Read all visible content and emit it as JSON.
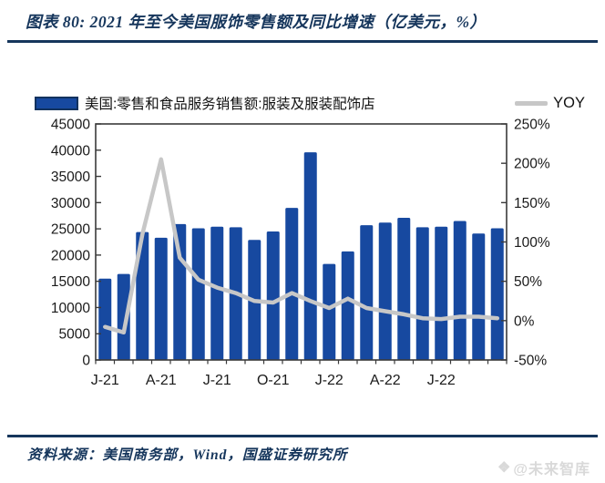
{
  "figure": {
    "title": "图表 80:  2021 年至今美国服饰零售额及同比增速（亿美元，%）",
    "source": "资料来源：美国商务部，Wind，国盛证券研究所",
    "watermark_icon": "❖",
    "watermark_text": "@未来智库"
  },
  "legend": {
    "bar_label": "美国:零售和食品服务销售额:服装及服装配饰店",
    "line_label": "YOY"
  },
  "colors": {
    "navy": "#16365C",
    "bar_fill": "#1749A0",
    "line_gray": "#C7C7C7",
    "axis_stroke": "#3A3A3A",
    "tick_text": "#1A1A1A"
  },
  "chart_data": {
    "type": "bar",
    "title": "图表 80: 2021 年至今美国服饰零售额及同比增速（亿美元，%）",
    "categories": [
      "2021-01",
      "2021-02",
      "2021-03",
      "2021-04",
      "2021-05",
      "2021-06",
      "2021-07",
      "2021-08",
      "2021-09",
      "2021-10",
      "2021-11",
      "2021-12",
      "2022-01",
      "2022-02",
      "2022-03",
      "2022-04",
      "2022-05",
      "2022-06",
      "2022-07",
      "2022-08",
      "2022-09",
      "2022-10"
    ],
    "series": [
      {
        "name": "美国:零售和食品服务销售额:服装及服装配饰店",
        "type": "bar",
        "axis": "left",
        "values": [
          15500,
          16400,
          24400,
          23300,
          25900,
          25100,
          25400,
          25300,
          22900,
          24500,
          29000,
          39600,
          18300,
          20700,
          25700,
          26200,
          27100,
          25300,
          25400,
          26500,
          24100,
          25100
        ]
      },
      {
        "name": "YOY",
        "type": "line",
        "axis": "right",
        "values": [
          -8,
          -15,
          110,
          205,
          80,
          52,
          42,
          35,
          25,
          23,
          35,
          25,
          16,
          28,
          16,
          12,
          8,
          3,
          2,
          5,
          5,
          3
        ]
      }
    ],
    "left_axis": {
      "min": 0,
      "max": 45000,
      "step": 5000,
      "tick_labels": [
        "45000",
        "40000",
        "35000",
        "30000",
        "25000",
        "20000",
        "15000",
        "10000",
        "5000",
        "0"
      ]
    },
    "right_axis": {
      "min": -50,
      "max": 250,
      "step": 50,
      "tick_labels": [
        "250%",
        "200%",
        "150%",
        "100%",
        "50%",
        "0%",
        "-50%"
      ]
    },
    "x_ticks": [
      {
        "index": 0,
        "label": "J-21"
      },
      {
        "index": 3,
        "label": "A-21"
      },
      {
        "index": 6,
        "label": "J-21"
      },
      {
        "index": 9,
        "label": "O-21"
      },
      {
        "index": 12,
        "label": "J-22"
      },
      {
        "index": 15,
        "label": "A-22"
      },
      {
        "index": 18,
        "label": "J-22"
      }
    ],
    "grid": false,
    "legend_position": "top"
  }
}
